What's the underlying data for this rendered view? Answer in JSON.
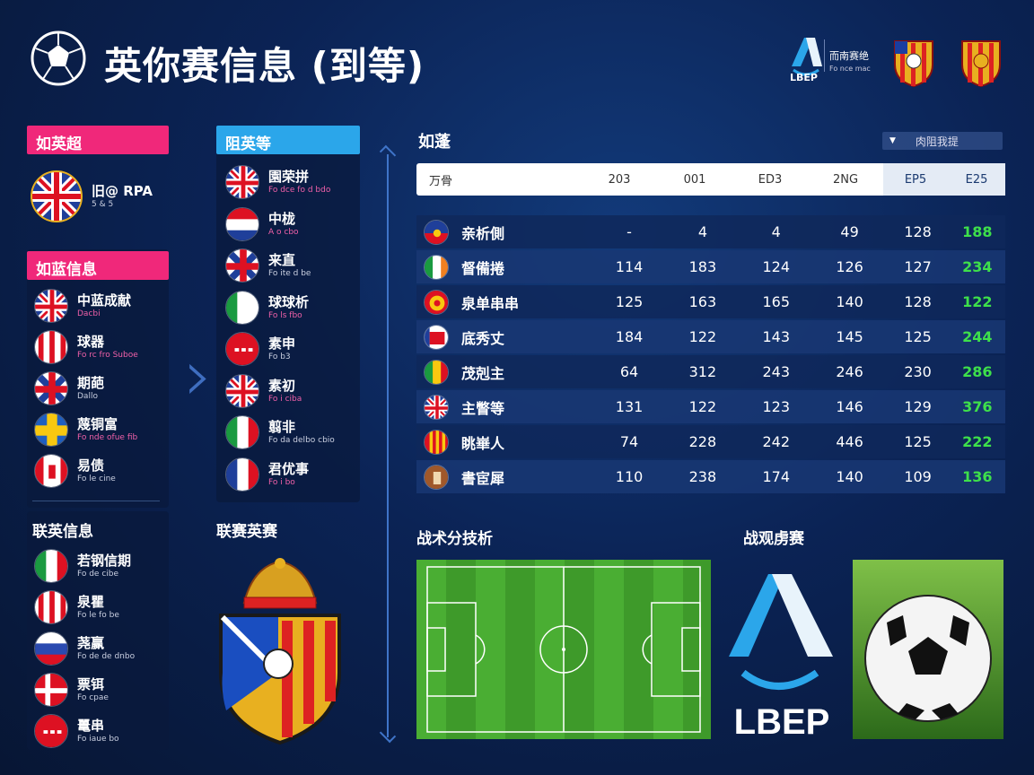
{
  "header": {
    "title": "英你赛信息 (到等)",
    "league_name": "而南赛绝",
    "league_sub": "Fo nce mac",
    "league_abbr": "LBEP"
  },
  "left_panel": {
    "top_tab": "如英超",
    "featured": {
      "name": "旧@ RPA",
      "sub": "5 & 5"
    },
    "second_tab": "如蓝信息",
    "items": [
      {
        "name": "中蓝成献",
        "sub": "Dacbi",
        "flag": "uk"
      },
      {
        "name": "球器",
        "sub": "Fo rc fro   Suboe",
        "flag": "stripes-red"
      },
      {
        "name": "期葩",
        "sub": "Dallo",
        "flag": "uk-red"
      },
      {
        "name": "蔑铜富",
        "sub": "Fo nde ofue fib",
        "flag": "yellow-blue"
      },
      {
        "name": "易债",
        "sub": "Fo le cine",
        "flag": "canada"
      }
    ],
    "league_section": "联英信息",
    "league_items": [
      {
        "name": "若钢信期",
        "sub": "Fo de cibe",
        "flag": "italy"
      },
      {
        "name": "泉瞿",
        "sub": "Fo le   fo be",
        "flag": "stripes-red"
      },
      {
        "name": "荛赢",
        "sub": "Fo de de dnbo",
        "flag": "russia"
      },
      {
        "name": "票铒",
        "sub": "Fo cpae",
        "flag": "denmark"
      },
      {
        "name": "鼍串",
        "sub": "Fo iaue   bo",
        "flag": "red-dots"
      }
    ]
  },
  "mid_panel": {
    "tab": "阻英等",
    "items": [
      {
        "name": "園荣拼",
        "sub": "Fo dce   fo d bdo",
        "flag": "uk"
      },
      {
        "name": "中栊",
        "sub": "A o cbo",
        "flag": "netherlands"
      },
      {
        "name": "来直",
        "sub": "Fo ite d be",
        "flag": "uk-red"
      },
      {
        "name": "球球析",
        "sub": "Fo ls   fbo",
        "flag": "nigeria"
      },
      {
        "name": "素申",
        "sub": "Fo b3",
        "flag": "red-dots"
      },
      {
        "name": "素初",
        "sub": "Fo i ciba",
        "flag": "uk"
      },
      {
        "name": "翦非",
        "sub": "Fo da delbo cbio",
        "flag": "italy"
      },
      {
        "name": "君优事",
        "sub": "Fo i bo",
        "flag": "france"
      }
    ],
    "section": "联赛英赛"
  },
  "table": {
    "title": "如蓬",
    "dropdown": "肉阻我提",
    "headers": [
      "万骨",
      "203",
      "001",
      "ED3",
      "2NG",
      "EP5",
      "E25"
    ],
    "rows": [
      {
        "flag": "haiti",
        "name": "亲析側",
        "vals": [
          "-",
          "4",
          "4",
          "49",
          "128",
          "188"
        ]
      },
      {
        "flag": "ireland",
        "name": "督備捲",
        "vals": [
          "114",
          "183",
          "124",
          "126",
          "127",
          "234"
        ]
      },
      {
        "flag": "crest-yellow",
        "name": "泉单串串",
        "vals": [
          "125",
          "163",
          "165",
          "140",
          "128",
          "122"
        ]
      },
      {
        "flag": "red-white",
        "name": "底秀丈",
        "vals": [
          "184",
          "122",
          "143",
          "145",
          "125",
          "244"
        ]
      },
      {
        "flag": "belgium",
        "name": "茂剋主",
        "vals": [
          "64",
          "312",
          "243",
          "246",
          "230",
          "286"
        ]
      },
      {
        "flag": "uk",
        "name": "主瞥等",
        "vals": [
          "131",
          "122",
          "123",
          "146",
          "129",
          "376"
        ]
      },
      {
        "flag": "crest-red",
        "name": "眺崋人",
        "vals": [
          "74",
          "228",
          "242",
          "446",
          "125",
          "222"
        ]
      },
      {
        "flag": "brown",
        "name": "書宦犀",
        "vals": [
          "110",
          "238",
          "174",
          "140",
          "109",
          "136"
        ]
      }
    ]
  },
  "bottom": {
    "tactics_title": "战术分技析",
    "media_title": "战观虏赛",
    "lber": "LBEP"
  },
  "colors": {
    "pink": "#f0287a",
    "cyan": "#2ba6ea",
    "green_value": "#3ee04a",
    "background": "#0b2355"
  }
}
